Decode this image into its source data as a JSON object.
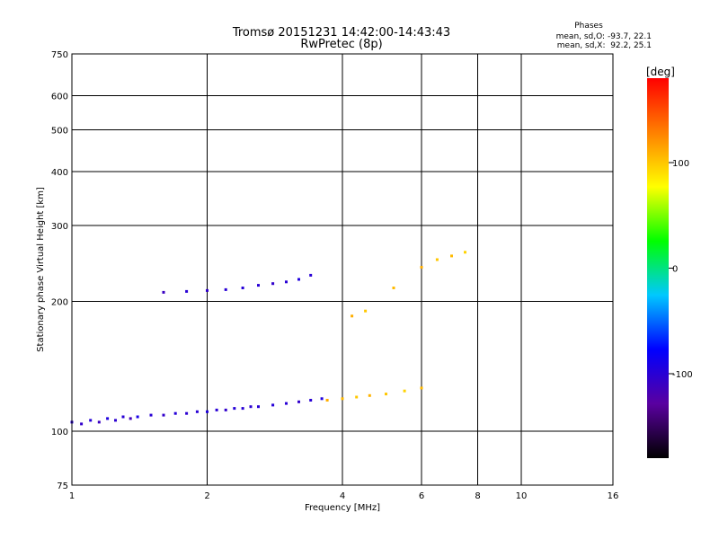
{
  "chart_data": {
    "type": "scatter",
    "title": "Tromsø 20151231 14:42:00-14:43:43",
    "subtitle": "RwPretec (8p)",
    "xlabel": "Frequency [MHz]",
    "ylabel": "Stationary phase Virtual Height [km]",
    "x_scale": "log",
    "y_scale": "log",
    "xlim": [
      1,
      16
    ],
    "ylim": [
      75,
      750
    ],
    "x_ticks": [
      1,
      2,
      4,
      6,
      8,
      10,
      16
    ],
    "y_ticks": [
      75,
      100,
      200,
      300,
      400,
      500,
      600,
      750
    ],
    "grid": true,
    "stats": {
      "heading": "Phases",
      "line_o": "mean, sd,O: -93.7, 22.1",
      "line_x": "mean, sd,X:  92.2, 25.1"
    },
    "colorbar": {
      "label": "[deg]",
      "ticks": [
        100,
        0,
        -100
      ],
      "range": [
        -180,
        180
      ],
      "colors": [
        "#000000",
        "#5a00a0",
        "#0000ff",
        "#00c8ff",
        "#00ff00",
        "#ffff00",
        "#ff8000",
        "#ff0000"
      ]
    },
    "series": [
      {
        "points": [
          [
            1.0,
            105,
            -100
          ],
          [
            1.05,
            104,
            -105
          ],
          [
            1.1,
            106,
            -98
          ],
          [
            1.15,
            105,
            -110
          ],
          [
            1.2,
            107,
            -95
          ],
          [
            1.25,
            106,
            -102
          ],
          [
            1.3,
            108,
            -100
          ],
          [
            1.35,
            107,
            -115
          ],
          [
            1.4,
            108,
            -90
          ],
          [
            1.5,
            109,
            -100
          ],
          [
            1.6,
            109,
            -105
          ],
          [
            1.7,
            110,
            -98
          ],
          [
            1.8,
            110,
            -102
          ],
          [
            1.9,
            111,
            -100
          ],
          [
            2.0,
            111,
            -95
          ],
          [
            2.1,
            112,
            -100
          ],
          [
            2.2,
            112,
            -105
          ],
          [
            2.3,
            113,
            -98
          ],
          [
            2.4,
            113,
            -100
          ],
          [
            2.5,
            114,
            -102
          ],
          [
            2.6,
            114,
            -100
          ],
          [
            2.8,
            115,
            -98
          ],
          [
            3.0,
            116,
            -100
          ],
          [
            3.2,
            117,
            -105
          ],
          [
            3.4,
            118,
            -100
          ],
          [
            3.6,
            119,
            -95
          ]
        ]
      },
      {
        "points": [
          [
            1.6,
            210,
            -110
          ],
          [
            1.8,
            211,
            -100
          ],
          [
            2.0,
            212,
            -105
          ],
          [
            2.2,
            213,
            -100
          ],
          [
            2.4,
            215,
            -98
          ],
          [
            2.6,
            218,
            -100
          ],
          [
            2.8,
            220,
            -105
          ],
          [
            3.0,
            222,
            -100
          ],
          [
            3.2,
            225,
            -95
          ],
          [
            3.4,
            230,
            -100
          ]
        ]
      },
      {
        "points": [
          [
            3.7,
            118,
            110
          ],
          [
            4.0,
            119,
            105
          ],
          [
            4.3,
            120,
            100
          ],
          [
            4.6,
            121,
            108
          ],
          [
            5.0,
            122,
            100
          ],
          [
            5.5,
            124,
            95
          ],
          [
            6.0,
            126,
            105
          ],
          [
            4.2,
            185,
            110
          ],
          [
            4.5,
            190,
            100
          ],
          [
            5.2,
            215,
            105
          ],
          [
            6.0,
            240,
            110
          ],
          [
            6.5,
            250,
            100
          ],
          [
            7.0,
            255,
            105
          ],
          [
            7.5,
            260,
            95
          ]
        ]
      }
    ]
  }
}
